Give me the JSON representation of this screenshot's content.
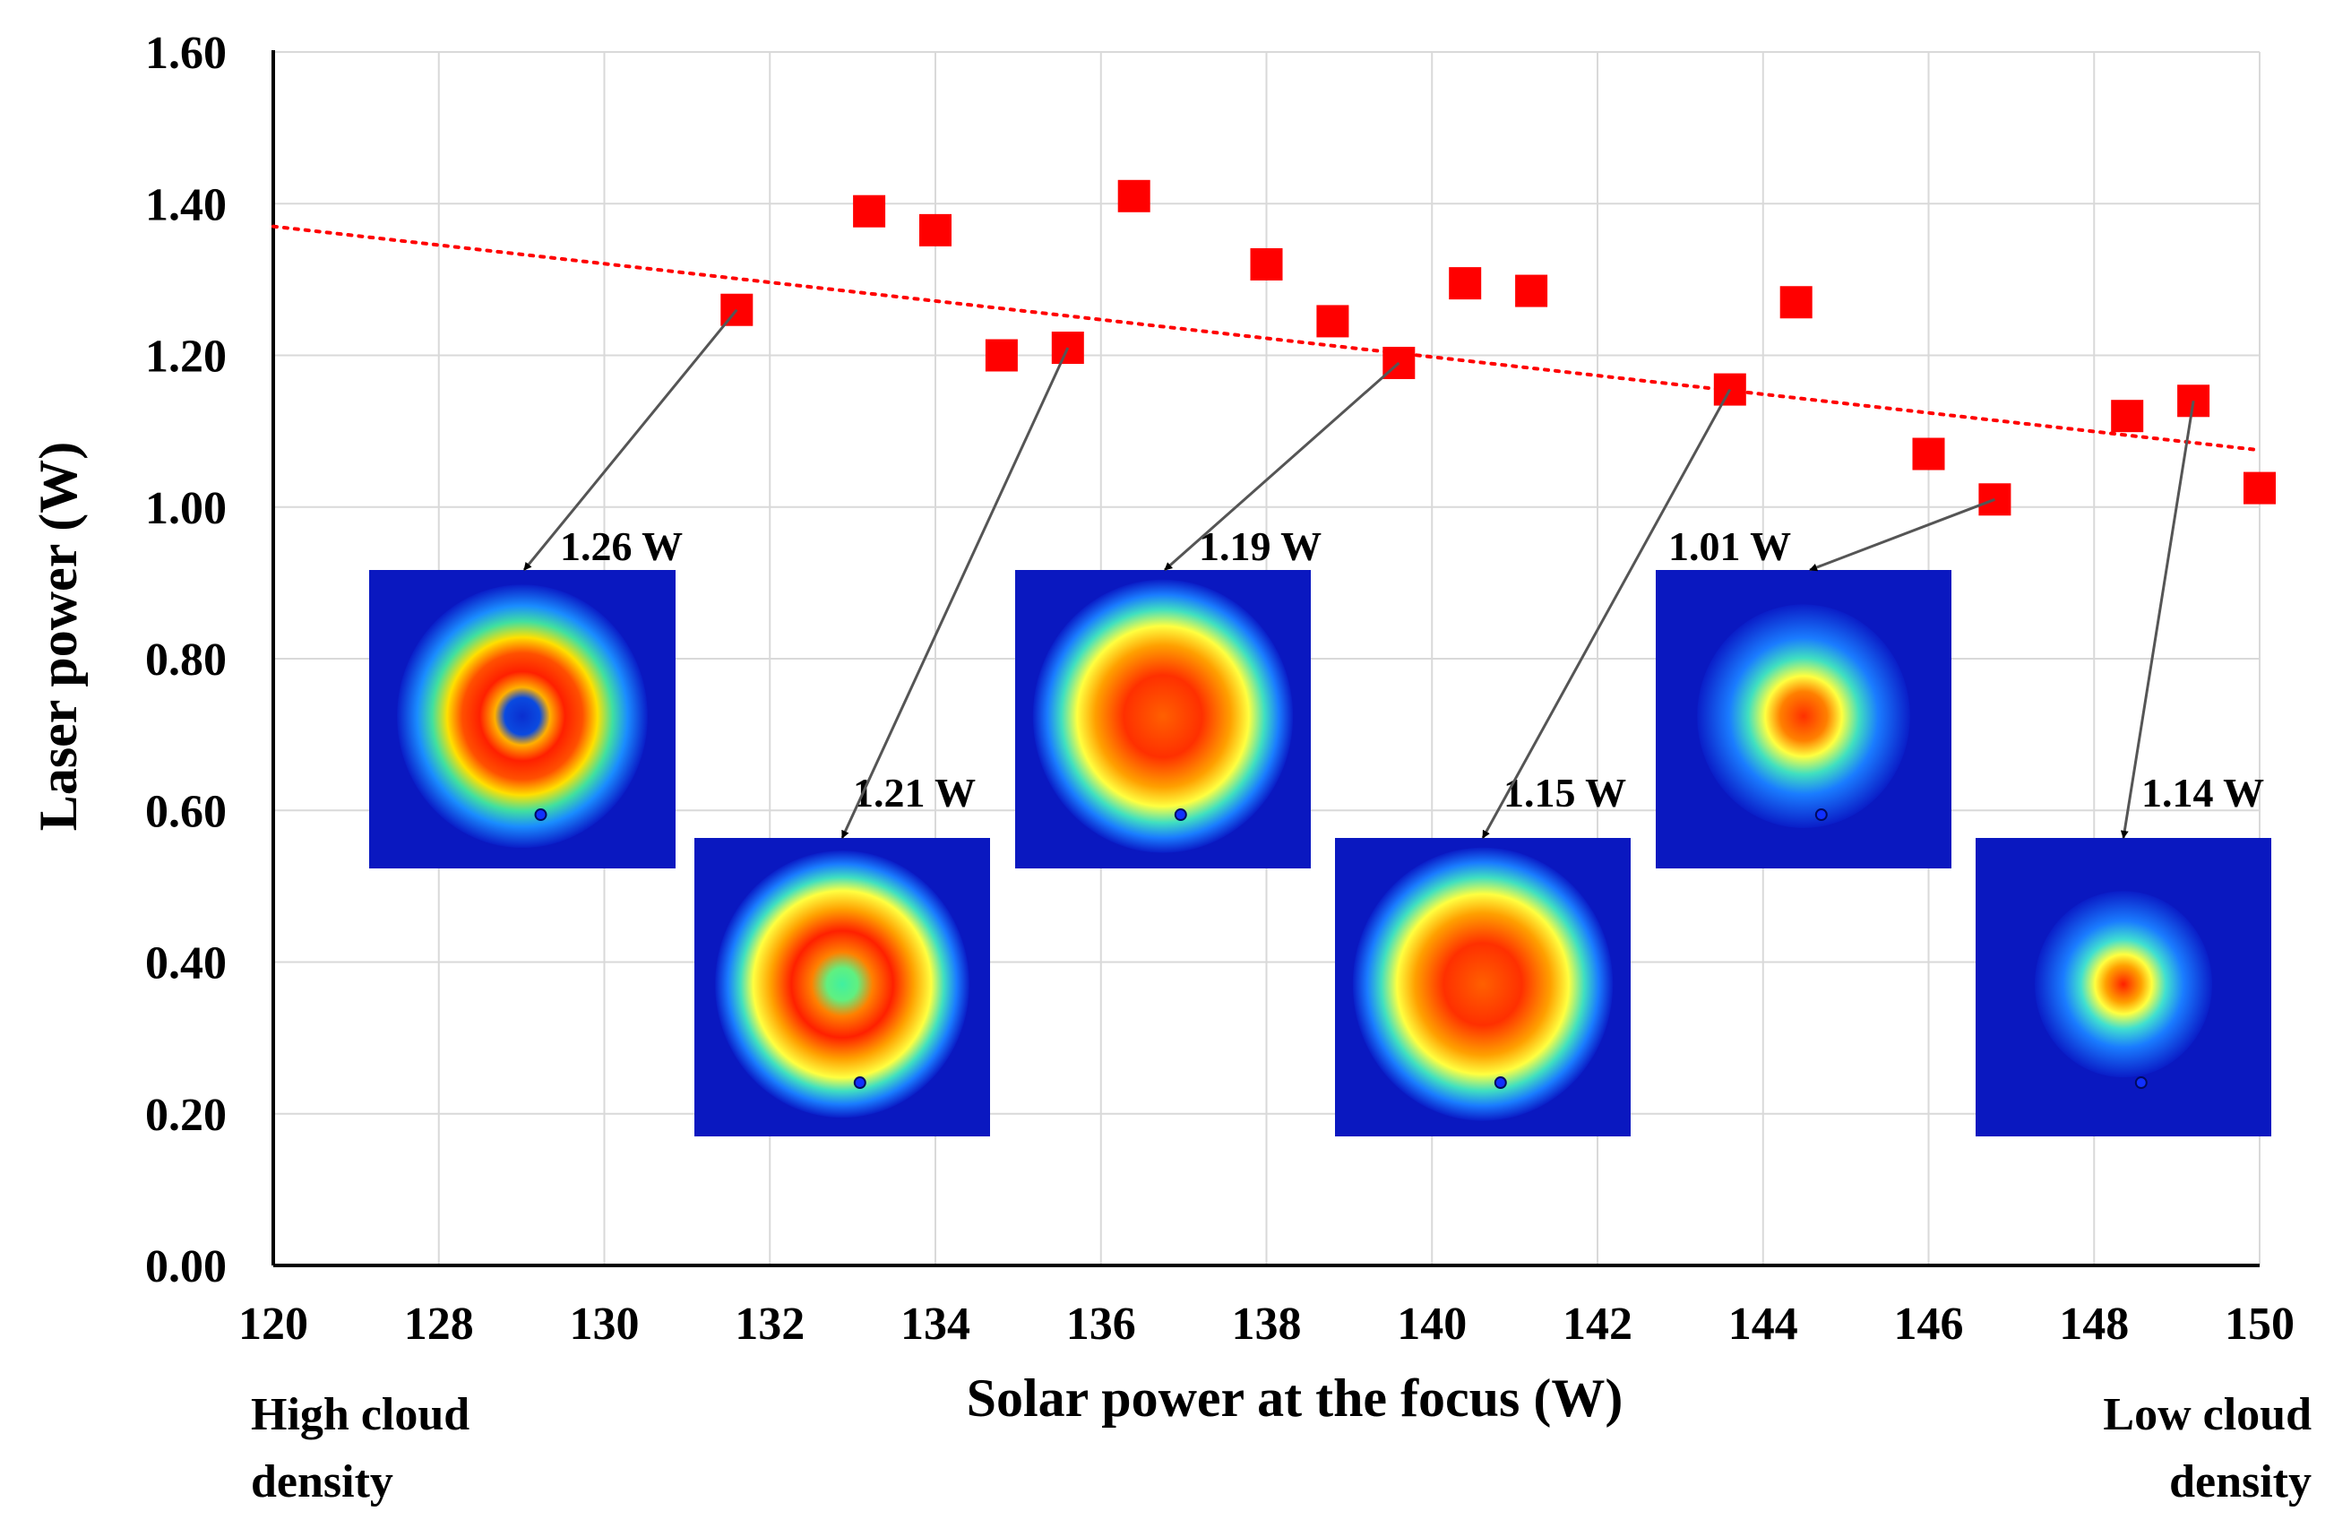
{
  "chart_data": {
    "type": "scatter",
    "xlabel": "Solar power at the focus (W)",
    "ylabel": "Laser power (W)",
    "x_tick_labels": [
      "120",
      "128",
      "130",
      "132",
      "134",
      "136",
      "138",
      "140",
      "142",
      "144",
      "146",
      "148",
      "150"
    ],
    "y_tick_labels": [
      "0.00",
      "0.20",
      "0.40",
      "0.60",
      "0.80",
      "1.00",
      "1.20",
      "1.40",
      "1.60"
    ],
    "xlim": [
      120,
      150
    ],
    "ylim": [
      0,
      1.6
    ],
    "grid": true,
    "series": [
      {
        "marker": "square",
        "color": "#ff0000",
        "points": [
          {
            "x": 127,
            "y": 1.26
          },
          {
            "x": 129,
            "y": 1.39
          },
          {
            "x": 130,
            "y": 1.365
          },
          {
            "x": 131,
            "y": 1.2
          },
          {
            "x": 132,
            "y": 1.21
          },
          {
            "x": 133,
            "y": 1.41
          },
          {
            "x": 135,
            "y": 1.32
          },
          {
            "x": 136,
            "y": 1.245
          },
          {
            "x": 137,
            "y": 1.19
          },
          {
            "x": 138,
            "y": 1.295
          },
          {
            "x": 139,
            "y": 1.285
          },
          {
            "x": 142,
            "y": 1.155
          },
          {
            "x": 143,
            "y": 1.27
          },
          {
            "x": 145,
            "y": 1.07
          },
          {
            "x": 146,
            "y": 1.01
          },
          {
            "x": 148,
            "y": 1.12
          },
          {
            "x": 149,
            "y": 1.14
          },
          {
            "x": 150,
            "y": 1.025
          }
        ]
      }
    ],
    "trendline": {
      "type": "linear",
      "color": "#ff0000",
      "style": "dotted",
      "start": [
        120,
        1.37
      ],
      "end": [
        150,
        1.075
      ]
    },
    "annotations": [
      {
        "label": "1.26 W",
        "point_x": 127,
        "point_y": 1.26,
        "profile": "ring"
      },
      {
        "label": "1.21 W",
        "point_x": 132,
        "point_y": 1.21,
        "profile": "ring-lobed"
      },
      {
        "label": "1.19 W",
        "point_x": 137,
        "point_y": 1.19,
        "profile": "broad"
      },
      {
        "label": "1.15 W",
        "point_x": 142,
        "point_y": 1.155,
        "profile": "broad"
      },
      {
        "label": "1.01 W",
        "point_x": 146,
        "point_y": 1.01,
        "profile": "small"
      },
      {
        "label": "1.14 W",
        "point_x": 149,
        "point_y": 1.14,
        "profile": "smallest"
      }
    ],
    "cloud_labels": {
      "left": [
        "High cloud",
        "density"
      ],
      "right": [
        "Low cloud",
        "density"
      ]
    }
  }
}
